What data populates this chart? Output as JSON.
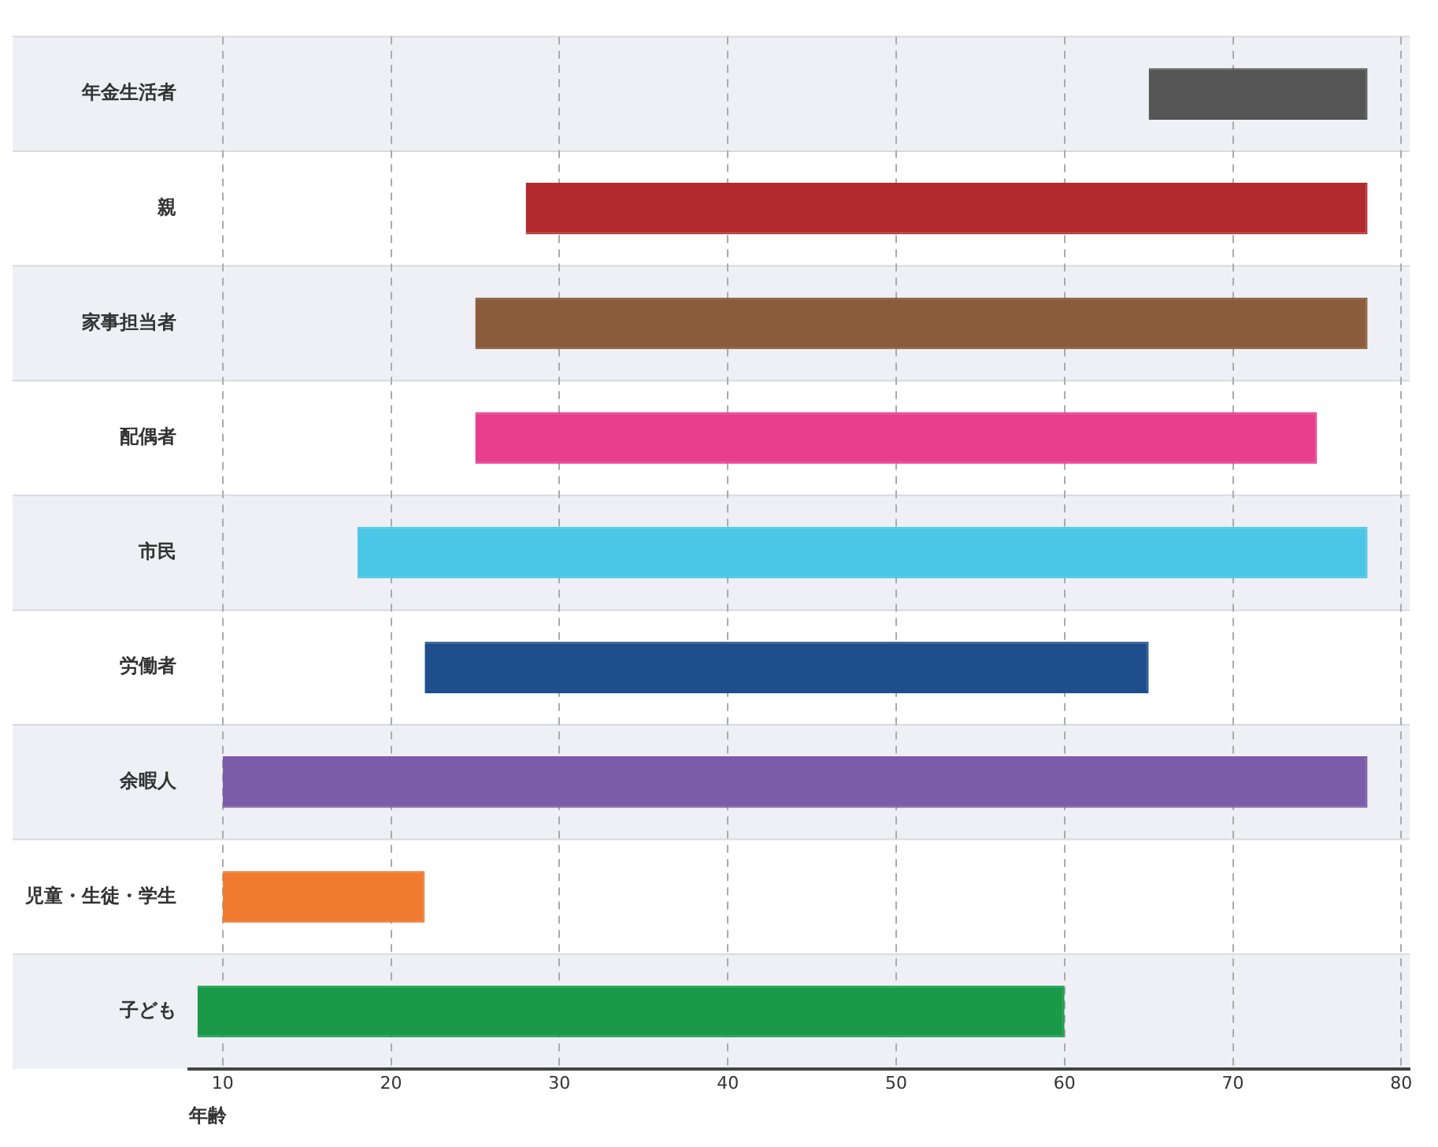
{
  "chart_data": {
    "type": "bar",
    "orientation": "horizontal",
    "xlabel": "年齢",
    "xlim": [
      8,
      80.5
    ],
    "xticks": [
      10,
      20,
      30,
      40,
      50,
      60,
      70,
      80
    ],
    "grid": "x",
    "categories": [
      "年金生活者",
      "親",
      "家事担当者",
      "配偶者",
      "市民",
      "労働者",
      "余暇人",
      "児童・生徒・学生",
      "子ども"
    ],
    "base": [
      65,
      28,
      25,
      25,
      18,
      22,
      10,
      10,
      8.5
    ],
    "values": [
      13,
      50,
      53,
      50,
      60,
      43,
      68,
      12,
      51.5
    ],
    "colors": [
      "#555555",
      "#b22a2e",
      "#8a5c3c",
      "#e83e8c",
      "#4cc6e6",
      "#1f4e8c",
      "#7b5ca8",
      "#f07a30",
      "#1a9a48"
    ]
  }
}
